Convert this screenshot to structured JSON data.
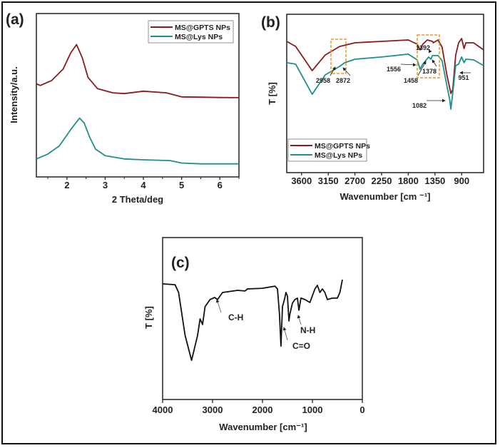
{
  "chart_data": [
    {
      "panel": "(a)",
      "type": "line",
      "xlabel": "2 Theta/deg",
      "ylabel": "Intensity/a.u.",
      "xlim": [
        1.2,
        6.5
      ],
      "ylim": [
        0,
        100
      ],
      "xticks": [
        2,
        3,
        4,
        5,
        6
      ],
      "grid": false,
      "legend": "top-right",
      "series": [
        {
          "name": "MS@GPTS NPs",
          "color": "#8b1a1a",
          "x": [
            1.2,
            1.3,
            1.6,
            1.9,
            2.1,
            2.25,
            2.4,
            2.55,
            2.8,
            3.2,
            3.5,
            4.0,
            4.6,
            5.0,
            5.5,
            6.0,
            6.5
          ],
          "y": [
            57,
            56,
            59,
            66,
            76,
            81,
            73,
            61,
            54,
            51.5,
            51,
            52.5,
            51.5,
            49,
            48.8,
            48.6,
            48.5
          ]
        },
        {
          "name": "MS@Lys NPs",
          "color": "#1f8f8a",
          "x": [
            1.2,
            1.5,
            1.8,
            2.1,
            2.33,
            2.45,
            2.6,
            2.75,
            3.0,
            3.5,
            4.0,
            4.7,
            5.0,
            5.5,
            6.5
          ],
          "y": [
            11,
            14,
            19,
            29,
            36,
            33,
            24,
            17,
            13,
            11,
            10.5,
            10,
            8.5,
            8,
            8
          ]
        }
      ]
    },
    {
      "panel": "(b)",
      "type": "line",
      "xlabel": "Wavenumber [cm ⁻¹]",
      "ylabel": "T [%]",
      "xlim": [
        3850,
        530
      ],
      "ylim": [
        0,
        100
      ],
      "xticks": [
        3600,
        3150,
        2700,
        2250,
        1800,
        1350,
        900
      ],
      "grid": false,
      "legend": "bottom-left",
      "series": [
        {
          "name": "MS@GPTS NPs",
          "color": "#8b1a1a",
          "x": [
            3850,
            3700,
            3420,
            3200,
            2958,
            2700,
            2250,
            1800,
            1650,
            1600,
            1556,
            1480,
            1392,
            1378,
            1300,
            1230,
            1150,
            1082,
            1050,
            1000,
            951,
            900,
            860,
            830,
            700,
            530
          ],
          "y": [
            82.9,
            79.7,
            64.4,
            74.3,
            79.7,
            82,
            82.9,
            83.8,
            81.1,
            77.5,
            81.1,
            83.8,
            82.9,
            82,
            83.8,
            79.3,
            61.7,
            50,
            52.7,
            74.3,
            82,
            84.7,
            78.4,
            82,
            82,
            77.5
          ]
        },
        {
          "name": "MS@Lys NPs",
          "color": "#1f8f8a",
          "x": [
            3850,
            3700,
            3420,
            3200,
            2958,
            2872,
            2700,
            2250,
            1800,
            1650,
            1600,
            1556,
            1458,
            1420,
            1392,
            1300,
            1230,
            1150,
            1100,
            1082,
            1050,
            1000,
            951,
            900,
            860,
            830,
            700,
            530
          ],
          "y": [
            69.4,
            68.5,
            49.5,
            61.7,
            67.1,
            69.4,
            71.6,
            73,
            74.8,
            71.2,
            65.3,
            68.5,
            73,
            71.6,
            73.9,
            73.9,
            70.7,
            55,
            45.9,
            40.1,
            50.5,
            67.6,
            68.5,
            73,
            69.4,
            71.6,
            71.2,
            67.6
          ]
        }
      ],
      "annotations": [
        "2958",
        "2872",
        "1556",
        "1458",
        "1392",
        "1378",
        "1082",
        "951"
      ]
    },
    {
      "panel": "(c)",
      "type": "line",
      "xlabel": "Wavenumber [cm⁻¹]",
      "ylabel": "T [%]",
      "xlim": [
        4000,
        0
      ],
      "ylim": [
        0,
        100
      ],
      "xticks": [
        4000,
        3000,
        2000,
        1000,
        0
      ],
      "grid": false,
      "series": [
        {
          "color": "#111111",
          "x": [
            4000,
            3750,
            3680,
            3550,
            3420,
            3300,
            3250,
            3200,
            3150,
            3050,
            2958,
            2900,
            2800,
            2500,
            2350,
            2300,
            2000,
            1750,
            1700,
            1660,
            1630,
            1600,
            1560,
            1530,
            1500,
            1470,
            1450,
            1400,
            1350,
            1300,
            1270,
            1230,
            1150,
            1050,
            950,
            900,
            850,
            800,
            750,
            700,
            600,
            500,
            450,
            400
          ],
          "y": [
            71.4,
            70.9,
            66.1,
            39.6,
            24.2,
            39.6,
            49.8,
            46.3,
            57.3,
            61.7,
            63,
            61.7,
            66.1,
            67.4,
            67,
            68.3,
            68.7,
            70,
            68.3,
            52.9,
            33,
            57.3,
            61.7,
            66.1,
            63.9,
            48.5,
            52.9,
            59.5,
            61.7,
            62.6,
            55.1,
            62.6,
            61.7,
            59.9,
            68.3,
            70.5,
            66.1,
            68.3,
            66.1,
            61.7,
            62.6,
            62.6,
            66.1,
            74
          ]
        }
      ],
      "annotations": [
        "C-H",
        "C=O",
        "N-H"
      ]
    }
  ]
}
